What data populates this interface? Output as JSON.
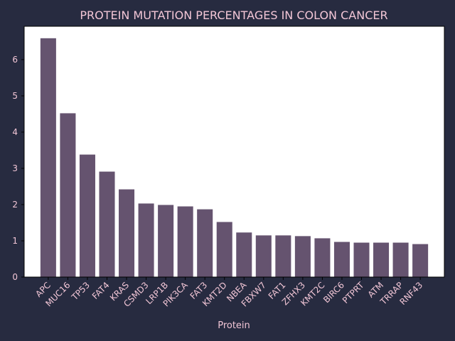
{
  "colors": {
    "background": "#272b40",
    "plot_background": "#ffffff",
    "bar": "#65536f",
    "text": "#f2c6d6",
    "axis": "#000000"
  },
  "chart_data": {
    "type": "bar",
    "title": "PROTEIN MUTATION PERCENTAGES IN COLON CANCER",
    "xlabel": "Protein",
    "ylabel": "",
    "ylim": [
      0,
      6.92
    ],
    "yticks": [
      0,
      1,
      2,
      3,
      4,
      5,
      6
    ],
    "grid": false,
    "categories": [
      "APC",
      "MUC16",
      "TP53",
      "FAT4",
      "KRAS",
      "CSMD3",
      "LRP1B",
      "PIK3CA",
      "FAT3",
      "KMT2D",
      "NBEA",
      "FBXW7",
      "FAT1",
      "ZFHX3",
      "KMT2C",
      "BIRC6",
      "PTPRT",
      "ATM",
      "TRRAP",
      "RNF43"
    ],
    "values": [
      6.59,
      4.52,
      3.38,
      2.91,
      2.42,
      2.03,
      1.99,
      1.95,
      1.87,
      1.52,
      1.23,
      1.15,
      1.15,
      1.13,
      1.07,
      0.97,
      0.95,
      0.95,
      0.95,
      0.91
    ]
  }
}
